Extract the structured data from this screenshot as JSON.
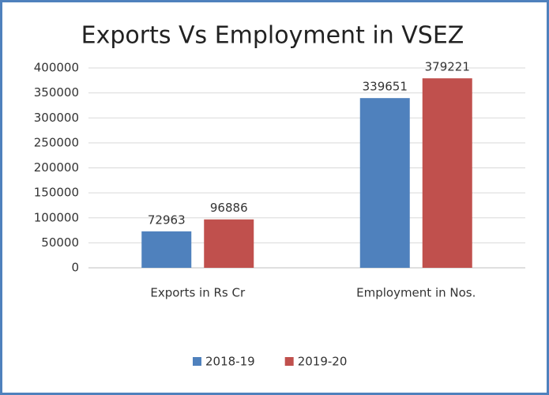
{
  "chart_data": {
    "type": "bar",
    "title": "Exports Vs Employment in VSEZ",
    "categories": [
      "Exports in Rs Cr",
      "Employment in Nos."
    ],
    "series": [
      {
        "name": "2018-19",
        "color": "#4f81bd",
        "values": [
          72963,
          339651
        ]
      },
      {
        "name": "2019-20",
        "color": "#c0504d",
        "values": [
          96886,
          379221
        ]
      }
    ],
    "ylim": [
      0,
      400000
    ],
    "yticks": [
      0,
      50000,
      100000,
      150000,
      200000,
      250000,
      300000,
      350000,
      400000
    ],
    "grid": true,
    "legend": "bottom"
  }
}
